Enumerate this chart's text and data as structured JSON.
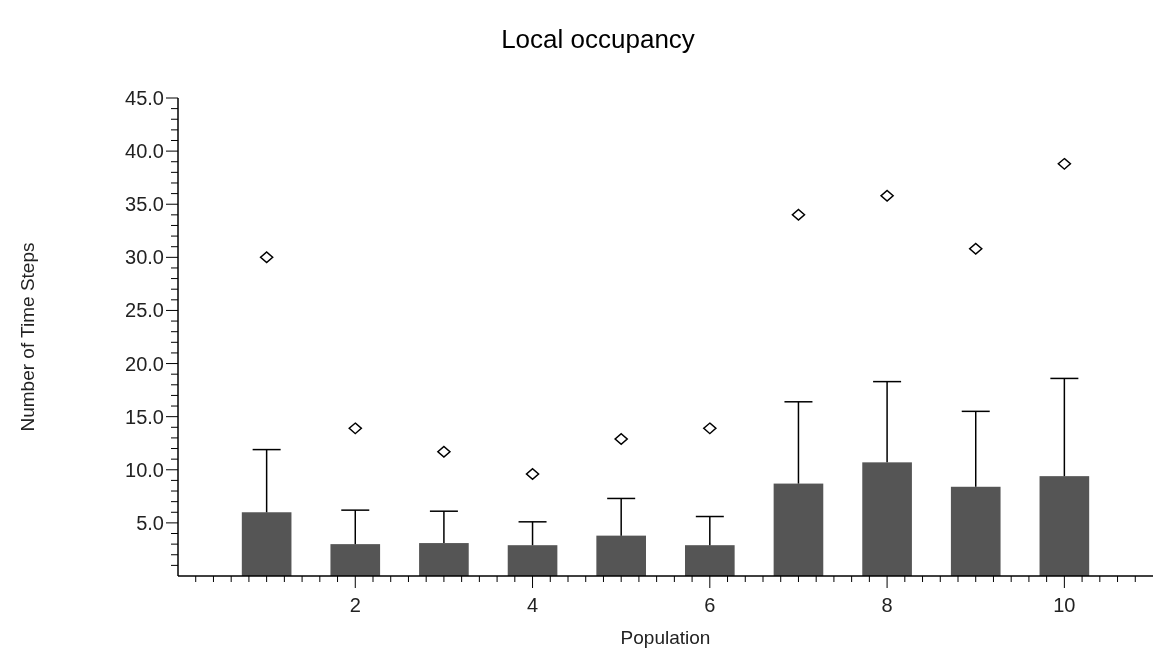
{
  "chart_data": {
    "type": "bar",
    "title": "Local occupancy",
    "xlabel": "Population",
    "ylabel": "Number of Time Steps",
    "x": [
      1,
      2,
      3,
      4,
      5,
      6,
      7,
      8,
      9,
      10
    ],
    "series": [
      {
        "color": "#555555",
        "values": [
          6.0,
          3.0,
          3.1,
          2.9,
          3.8,
          2.9,
          8.7,
          10.7,
          8.4,
          9.4
        ],
        "errors": [
          [
            6.0,
            11.9
          ],
          [
            3.0,
            6.2
          ],
          [
            3.1,
            6.1
          ],
          [
            2.9,
            5.1
          ],
          [
            3.8,
            7.3
          ],
          [
            2.9,
            5.6
          ],
          [
            8.7,
            16.4
          ],
          [
            10.7,
            18.3
          ],
          [
            8.4,
            15.5
          ],
          [
            9.4,
            18.6
          ]
        ]
      },
      {
        "type": "scatter",
        "color": "#000000",
        "marker": "diamond",
        "values": [
          30.0,
          13.9,
          11.7,
          9.6,
          12.9,
          13.9,
          34.0,
          35.8,
          30.8,
          38.8
        ]
      }
    ],
    "xlim": [
      0,
      11
    ],
    "xticks": [
      {
        "value": 0.2,
        "label": null
      },
      {
        "value": 0.4,
        "label": null
      },
      {
        "value": 0.6,
        "label": null
      },
      {
        "value": 0.8,
        "label": null
      },
      {
        "value": 1,
        "label": null
      },
      {
        "value": 1.2,
        "label": null
      },
      {
        "value": 1.4,
        "label": null
      },
      {
        "value": 1.6,
        "label": null
      },
      {
        "value": 1.8,
        "label": null
      },
      2,
      {
        "value": 2.2,
        "label": null
      },
      {
        "value": 2.4,
        "label": null
      },
      {
        "value": 2.6,
        "label": null
      },
      {
        "value": 2.8,
        "label": null
      },
      {
        "value": 3,
        "label": null
      },
      {
        "value": 3.2,
        "label": null
      },
      {
        "value": 3.4,
        "label": null
      },
      {
        "value": 3.6,
        "label": null
      },
      {
        "value": 3.8,
        "label": null
      },
      4,
      {
        "value": 4.2,
        "label": null
      },
      {
        "value": 4.4,
        "label": null
      },
      {
        "value": 4.6,
        "label": null
      },
      {
        "value": 4.8,
        "label": null
      },
      {
        "value": 5,
        "label": null
      },
      {
        "value": 5.2,
        "label": null
      },
      {
        "value": 5.4,
        "label": null
      },
      {
        "value": 5.6,
        "label": null
      },
      {
        "value": 5.8,
        "label": null
      },
      6,
      {
        "value": 6.2,
        "label": null
      },
      {
        "value": 6.4,
        "label": null
      },
      {
        "value": 6.6,
        "label": null
      },
      {
        "value": 6.8,
        "label": null
      },
      {
        "value": 7,
        "label": null
      },
      {
        "value": 7.2,
        "label": null
      },
      {
        "value": 7.4,
        "label": null
      },
      {
        "value": 7.6,
        "label": null
      },
      {
        "value": 7.8,
        "label": null
      },
      8,
      {
        "value": 8.2,
        "label": null
      },
      {
        "value": 8.4,
        "label": null
      },
      {
        "value": 8.6,
        "label": null
      },
      {
        "value": 8.8,
        "label": null
      },
      {
        "value": 9,
        "label": null
      },
      {
        "value": 9.2,
        "label": null
      },
      {
        "value": 9.4,
        "label": null
      },
      {
        "value": 9.6,
        "label": null
      },
      {
        "value": 9.8,
        "label": null
      },
      10,
      {
        "value": 10.2,
        "label": null
      },
      {
        "value": 10.4,
        "label": null
      },
      {
        "value": 10.6,
        "label": null
      },
      {
        "value": 10.8,
        "label": null
      }
    ],
    "ylim": [
      0,
      45
    ],
    "yticks": [
      {
        "value": 1,
        "label": null
      },
      {
        "value": 2,
        "label": null
      },
      {
        "value": 3,
        "label": null
      },
      {
        "value": 4,
        "label": null
      },
      {
        "value": 5,
        "label": "5.0"
      },
      {
        "value": 6,
        "label": null
      },
      {
        "value": 7,
        "label": null
      },
      {
        "value": 8,
        "label": null
      },
      {
        "value": 9,
        "label": null
      },
      {
        "value": 10,
        "label": "10.0"
      },
      {
        "value": 11,
        "label": null
      },
      {
        "value": 12,
        "label": null
      },
      {
        "value": 13,
        "label": null
      },
      {
        "value": 14,
        "label": null
      },
      {
        "value": 15,
        "label": "15.0"
      },
      {
        "value": 16,
        "label": null
      },
      {
        "value": 17,
        "label": null
      },
      {
        "value": 18,
        "label": null
      },
      {
        "value": 19,
        "label": null
      },
      {
        "value": 20,
        "label": "20.0"
      },
      {
        "value": 21,
        "label": null
      },
      {
        "value": 22,
        "label": null
      },
      {
        "value": 23,
        "label": null
      },
      {
        "value": 24,
        "label": null
      },
      {
        "value": 25,
        "label": "25.0"
      },
      {
        "value": 26,
        "label": null
      },
      {
        "value": 27,
        "label": null
      },
      {
        "value": 28,
        "label": null
      },
      {
        "value": 29,
        "label": null
      },
      {
        "value": 30,
        "label": "30.0"
      },
      {
        "value": 31,
        "label": null
      },
      {
        "value": 32,
        "label": null
      },
      {
        "value": 33,
        "label": null
      },
      {
        "value": 34,
        "label": null
      },
      {
        "value": 35,
        "label": "35.0"
      },
      {
        "value": 36,
        "label": null
      },
      {
        "value": 37,
        "label": null
      },
      {
        "value": 38,
        "label": null
      },
      {
        "value": 39,
        "label": null
      },
      {
        "value": 40,
        "label": "40.0"
      },
      {
        "value": 41,
        "label": null
      },
      {
        "value": 42,
        "label": null
      },
      {
        "value": 43,
        "label": null
      },
      {
        "value": 44,
        "label": null
      },
      {
        "value": 45,
        "label": "45.0"
      }
    ],
    "grid": false
  }
}
